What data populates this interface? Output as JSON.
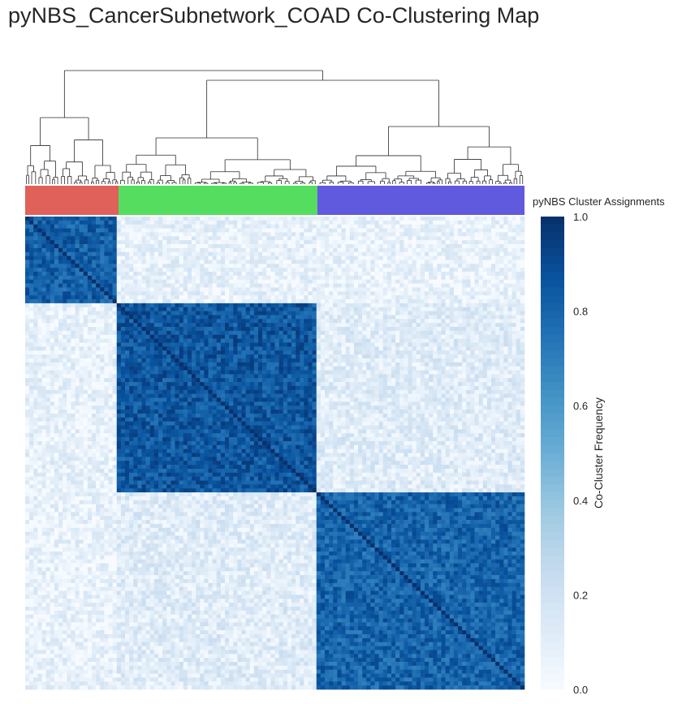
{
  "title": "pyNBS_CancerSubnetwork_COAD Co-Clustering Map",
  "chart_data": {
    "type": "heatmap",
    "title": "pyNBS_CancerSubnetwork_COAD Co-Clustering Map",
    "clusters": [
      {
        "color": "#e0605a",
        "share": 0.187
      },
      {
        "color": "#55dd5f",
        "share": 0.398
      },
      {
        "color": "#5f5ade",
        "share": 0.415
      }
    ],
    "cluster_legend_title": "pyNBS Cluster Assignments",
    "colorbar": {
      "label": "Co-Cluster Frequency",
      "range": [
        0.0,
        1.0
      ],
      "ticks": [
        "0.0",
        "0.2",
        "0.4",
        "0.6",
        "0.8",
        "1.0"
      ],
      "colormap": [
        "#f7fbff",
        "#deebf7",
        "#c6dbef",
        "#9ecae1",
        "#6baed6",
        "#4292c6",
        "#2171b5",
        "#08519c",
        "#08306b"
      ]
    },
    "block_mean_frequency": [
      [
        0.82,
        0.08,
        0.07
      ],
      [
        0.08,
        0.85,
        0.12
      ],
      [
        0.07,
        0.12,
        0.8
      ]
    ],
    "legend": "right",
    "dendrogram": "top"
  }
}
